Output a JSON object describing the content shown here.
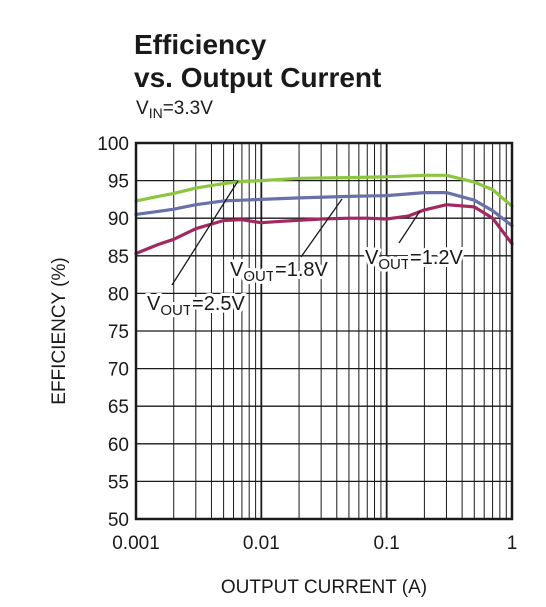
{
  "chart_data": {
    "type": "line",
    "title_line1": "Efficiency",
    "title_line2": "vs. Output Current",
    "subtitle": {
      "main": "V",
      "sub": "IN",
      "rest": "=3.3V"
    },
    "xlabel": "OUTPUT CURRENT (A)",
    "ylabel": "EFFICIENCY (%)",
    "xscale": "log",
    "xlim": [
      0.001,
      1
    ],
    "ylim": [
      50,
      100
    ],
    "grid": true,
    "x_tick_labels": [
      "0.001",
      "0.01",
      "0.1",
      "1"
    ],
    "y_tick_labels": [
      "50",
      "55",
      "60",
      "65",
      "70",
      "75",
      "80",
      "85",
      "90",
      "95",
      "100"
    ],
    "series": [
      {
        "name": "VOUT=2.5V",
        "color": "#8cc63f",
        "x": [
          0.001,
          0.0015,
          0.002,
          0.003,
          0.005,
          0.007,
          0.01,
          0.02,
          0.05,
          0.1,
          0.2,
          0.3,
          0.5,
          0.7,
          1
        ],
        "y": [
          92.3,
          92.9,
          93.3,
          94.0,
          94.6,
          94.9,
          95.0,
          95.3,
          95.4,
          95.5,
          95.7,
          95.7,
          94.8,
          93.8,
          91.6
        ]
      },
      {
        "name": "VOUT=1.8V",
        "color": "#6a70a8",
        "x": [
          0.001,
          0.0015,
          0.002,
          0.003,
          0.005,
          0.007,
          0.01,
          0.02,
          0.05,
          0.1,
          0.2,
          0.3,
          0.5,
          0.7,
          1
        ],
        "y": [
          90.5,
          90.9,
          91.2,
          91.8,
          92.3,
          92.4,
          92.5,
          92.7,
          92.9,
          93.0,
          93.4,
          93.4,
          92.4,
          91.0,
          89.0
        ]
      },
      {
        "name": "VOUT=1.2V",
        "color": "#a3285f",
        "x": [
          0.001,
          0.0015,
          0.002,
          0.003,
          0.005,
          0.007,
          0.01,
          0.015,
          0.03,
          0.05,
          0.07,
          0.1,
          0.15,
          0.2,
          0.3,
          0.5,
          0.7,
          1
        ],
        "y": [
          85.3,
          86.5,
          87.2,
          88.6,
          89.7,
          89.8,
          89.4,
          89.6,
          89.9,
          90.0,
          90.0,
          89.9,
          90.3,
          91.1,
          91.8,
          91.5,
          90.0,
          86.6
        ]
      }
    ],
    "annotations": [
      {
        "main": "V",
        "sub": "OUT",
        "rest": "=2.5V"
      },
      {
        "main": "V",
        "sub": "OUT",
        "rest": "=1.8V"
      },
      {
        "main": "V",
        "sub": "OUT",
        "rest": "=1.2V"
      }
    ]
  }
}
